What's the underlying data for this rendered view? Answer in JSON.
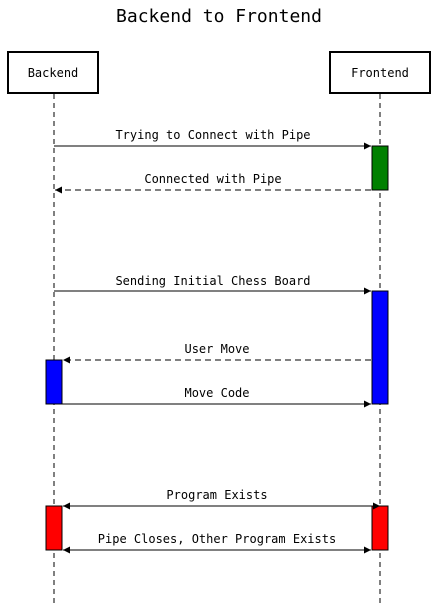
{
  "title": "Backend to Frontend",
  "participants": [
    {
      "id": "backend",
      "label": "Backend"
    },
    {
      "id": "frontend",
      "label": "Frontend"
    }
  ],
  "messages": [
    {
      "label": "Trying to Connect with Pipe",
      "from": "backend",
      "to": "frontend",
      "style": "solid"
    },
    {
      "label": "Connected with Pipe",
      "from": "frontend",
      "to": "backend",
      "style": "dashed"
    },
    {
      "label": "Sending Initial Chess Board",
      "from": "backend",
      "to": "frontend",
      "style": "solid"
    },
    {
      "label": "User Move",
      "from": "frontend",
      "to": "backend",
      "style": "dashed"
    },
    {
      "label": "Move Code",
      "from": "backend",
      "to": "frontend",
      "style": "solid"
    },
    {
      "label": "Program Exists",
      "from": "backend",
      "to": "frontend",
      "style": "bidirectional"
    },
    {
      "label": "Pipe Closes, Other Program Exists",
      "from": "backend",
      "to": "frontend",
      "style": "bidirectional"
    }
  ],
  "activations": [
    {
      "participant": "frontend",
      "color": "#008000"
    },
    {
      "participant": "frontend",
      "color": "#0000ff"
    },
    {
      "participant": "backend",
      "color": "#0000ff"
    },
    {
      "participant": "backend",
      "color": "#ff0000"
    },
    {
      "participant": "frontend",
      "color": "#ff0000"
    }
  ]
}
